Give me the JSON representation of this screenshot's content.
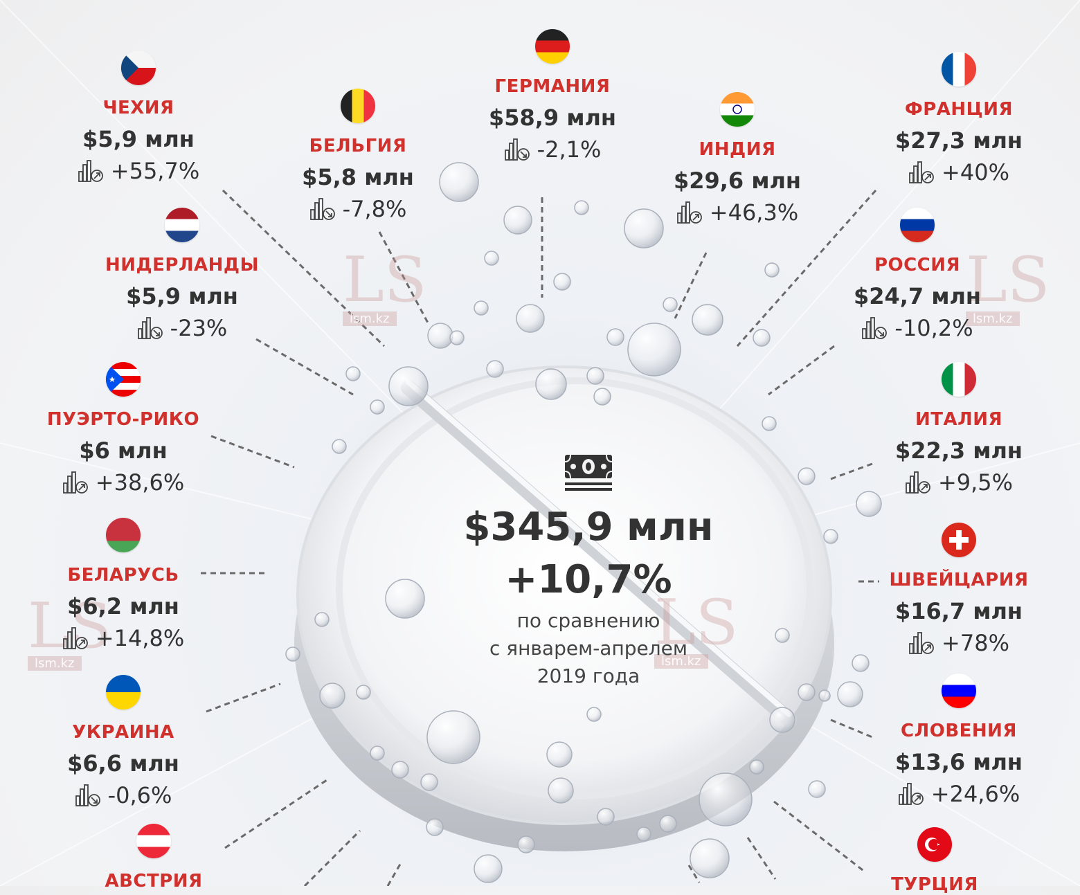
{
  "center": {
    "total": "$345,9 млн",
    "growth": "+10,7%",
    "note_lines": [
      "по сравнению",
      "с январем-апрелем",
      "2019 года"
    ]
  },
  "colors": {
    "accent": "#d0312d",
    "text": "#333333"
  },
  "watermark": {
    "text": "LS",
    "sub": "lsm.kz"
  },
  "countries": {
    "germany": {
      "name": "ГЕРМАНИЯ",
      "amount": "$58,9 млн",
      "change": "-2,1%",
      "trend": "down",
      "flag": "germany-flag-icon"
    },
    "czechia": {
      "name": "ЧЕХИЯ",
      "amount": "$5,9 млн",
      "change": "+55,7%",
      "trend": "up",
      "flag": "czechia-flag-icon"
    },
    "belgium": {
      "name": "БЕЛЬГИЯ",
      "amount": "$5,8 млн",
      "change": "-7,8%",
      "trend": "down",
      "flag": "belgium-flag-icon"
    },
    "india": {
      "name": "ИНДИЯ",
      "amount": "$29,6 млн",
      "change": "+46,3%",
      "trend": "up",
      "flag": "india-flag-icon"
    },
    "france": {
      "name": "ФРАНЦИЯ",
      "amount": "$27,3 млн",
      "change": "+40%",
      "trend": "up",
      "flag": "france-flag-icon"
    },
    "netherlands": {
      "name": "НИДЕРЛАНДЫ",
      "amount": "$5,9 млн",
      "change": "-23%",
      "trend": "down",
      "flag": "netherlands-flag-icon"
    },
    "russia": {
      "name": "РОССИЯ",
      "amount": "$24,7 млн",
      "change": "-10,2%",
      "trend": "down",
      "flag": "russia-flag-icon"
    },
    "puerto_rico": {
      "name": "ПУЭРТО-РИКО",
      "amount": "$6 млн",
      "change": "+38,6%",
      "trend": "up",
      "flag": "puerto-rico-flag-icon"
    },
    "italy": {
      "name": "ИТАЛИЯ",
      "amount": "$22,3 млн",
      "change": "+9,5%",
      "trend": "up",
      "flag": "italy-flag-icon"
    },
    "belarus": {
      "name": "БЕЛАРУСЬ",
      "amount": "$6,2 млн",
      "change": "+14,8%",
      "trend": "up",
      "flag": "belarus-flag-icon"
    },
    "switzerland": {
      "name": "ШВЕЙЦАРИЯ",
      "amount": "$16,7 млн",
      "change": "+78%",
      "trend": "up",
      "flag": "switzerland-flag-icon"
    },
    "ukraine": {
      "name": "УКРАИНА",
      "amount": "$6,6 млн",
      "change": "-0,6%",
      "trend": "down",
      "flag": "ukraine-flag-icon"
    },
    "slovenia": {
      "name": "СЛОВЕНИЯ",
      "amount": "$13,6 млн",
      "change": "+24,6%",
      "trend": "up",
      "flag": "slovenia-flag-icon"
    },
    "austria": {
      "name": "АВСТРИЯ",
      "flag": "austria-flag-icon"
    },
    "turkey": {
      "name": "ТУРЦИЯ",
      "flag": "turkey-flag-icon"
    }
  }
}
